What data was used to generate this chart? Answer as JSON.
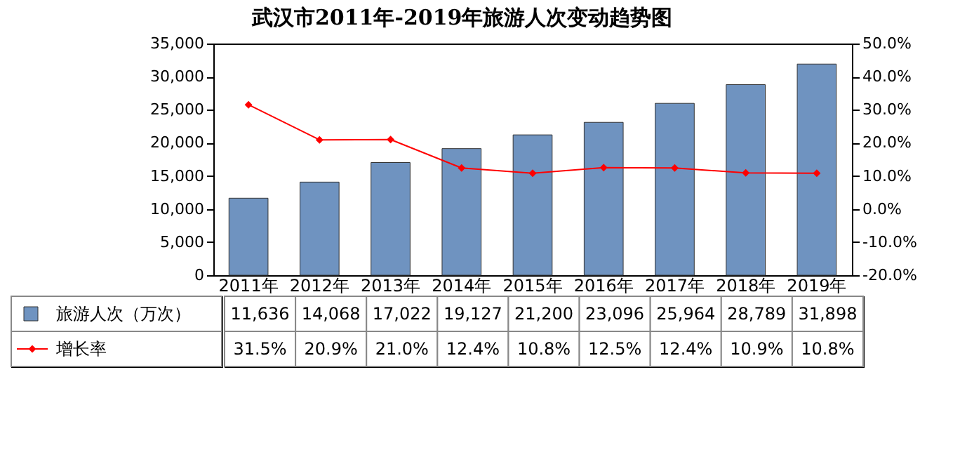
{
  "chart_data": {
    "type": "bar",
    "title": "武汉市2011年-2019年旅游人次变动趋势图",
    "categories": [
      "2011年",
      "2012年",
      "2013年",
      "2014年",
      "2015年",
      "2016年",
      "2017年",
      "2018年",
      "2019年"
    ],
    "series": [
      {
        "name": "旅游人次（万次）",
        "color": "#6f93c0",
        "values": [
          11636,
          14068,
          17022,
          19127,
          21200,
          23096,
          25964,
          28789,
          31898
        ],
        "value_labels": [
          "11,636",
          "14,068",
          "17,022",
          "19,127",
          "21,200",
          "23,096",
          "25,964",
          "28,789",
          "31,898"
        ]
      },
      {
        "name": "增长率",
        "type": "line",
        "axis": "y2",
        "color": "#ff0000",
        "marker": "diamond",
        "values": [
          31.5,
          20.9,
          21.0,
          12.4,
          10.8,
          12.5,
          12.4,
          10.9,
          10.8
        ],
        "value_labels": [
          "31.5%",
          "20.9%",
          "21.0%",
          "12.4%",
          "10.8%",
          "12.5%",
          "12.4%",
          "10.9%",
          "10.8%"
        ]
      }
    ],
    "ylim": [
      0,
      35000
    ],
    "yticks": [
      {
        "value": 0,
        "label": "0"
      },
      {
        "value": 5000,
        "label": "5,000"
      },
      {
        "value": 10000,
        "label": "10,000"
      },
      {
        "value": 15000,
        "label": "15,000"
      },
      {
        "value": 20000,
        "label": "20,000"
      },
      {
        "value": 25000,
        "label": "25,000"
      },
      {
        "value": 30000,
        "label": "30,000"
      },
      {
        "value": 35000,
        "label": "35,000"
      }
    ],
    "y2lim": [
      -20,
      50
    ],
    "y2ticks": [
      {
        "value": -20,
        "label": "-20.0%"
      },
      {
        "value": -10,
        "label": "-10.0%"
      },
      {
        "value": 0,
        "label": "0.0%"
      },
      {
        "value": 10,
        "label": "10.0%"
      },
      {
        "value": 20,
        "label": "20.0%"
      },
      {
        "value": 30,
        "label": "30.0%"
      },
      {
        "value": 40,
        "label": "40.0%"
      },
      {
        "value": 50,
        "label": "50.0%"
      }
    ],
    "legend": "bottom left"
  }
}
